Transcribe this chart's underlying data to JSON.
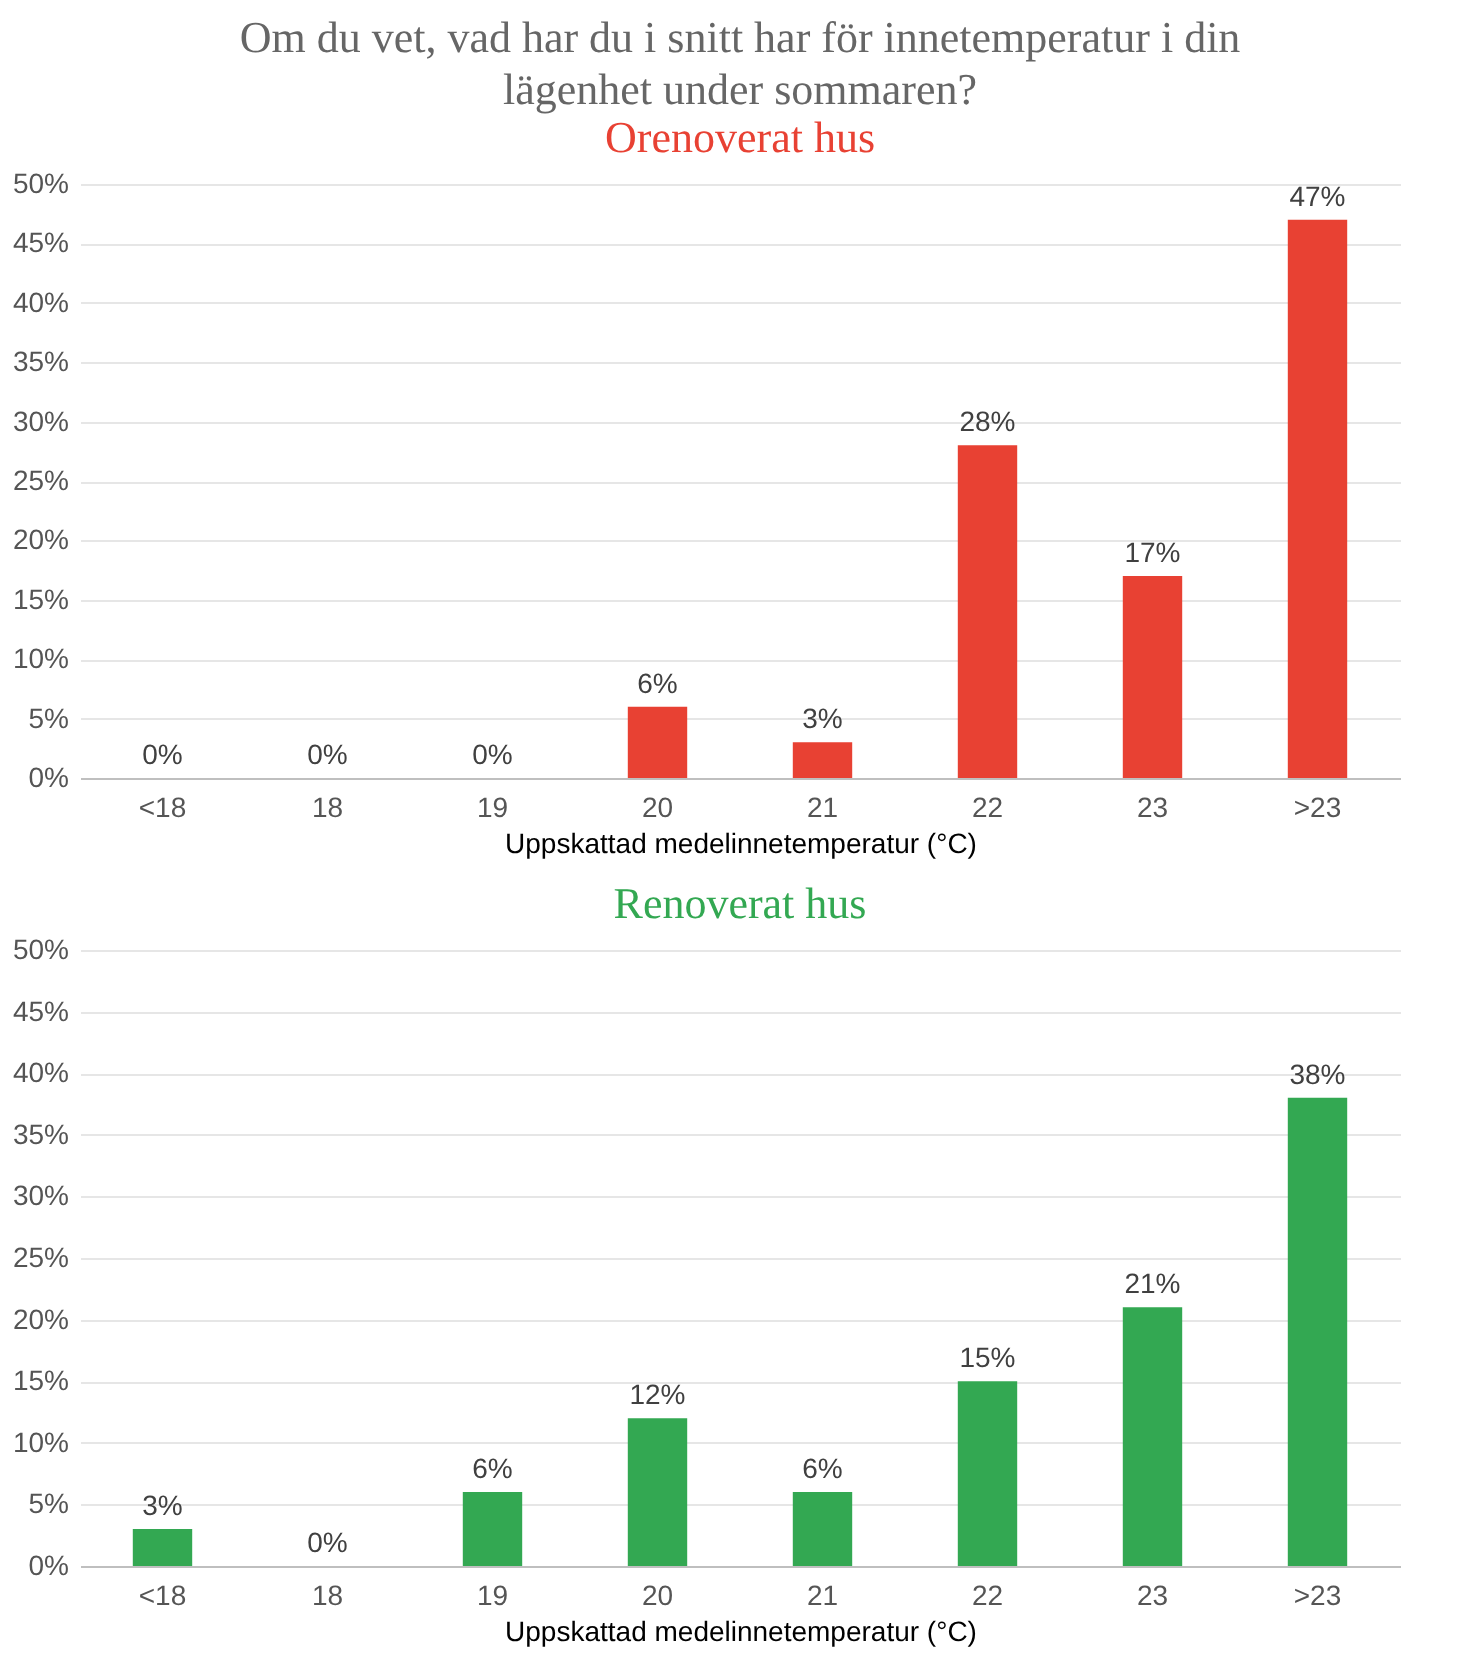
{
  "chart_data": [
    {
      "type": "bar",
      "title": "Om du vet, vad har du i snitt har för innetemperatur i din lägenhet under sommaren?",
      "subtitle": "Orenoverat hus",
      "xlabel": "Uppskattad medelinnetemperatur (°C)",
      "categories": [
        "<18",
        "18",
        "19",
        "20",
        "21",
        "22",
        "23",
        ">23"
      ],
      "series": [
        {
          "color": "#e84133",
          "values": [
            0,
            0,
            0,
            6,
            3,
            28,
            17,
            47
          ],
          "value_labels": [
            "0%",
            "0%",
            "0%",
            "6%",
            "3%",
            "28%",
            "17%",
            "47%"
          ]
        }
      ],
      "ylim": [
        0,
        50
      ],
      "yticks": [
        {
          "value": 0,
          "label": "0%"
        },
        {
          "value": 5,
          "label": "5%"
        },
        {
          "value": 10,
          "label": "10%"
        },
        {
          "value": 15,
          "label": "15%"
        },
        {
          "value": 20,
          "label": "20%"
        },
        {
          "value": 25,
          "label": "25%"
        },
        {
          "value": 30,
          "label": "30%"
        },
        {
          "value": 35,
          "label": "35%"
        },
        {
          "value": 40,
          "label": "40%"
        },
        {
          "value": 45,
          "label": "45%"
        },
        {
          "value": 50,
          "label": "50%"
        }
      ],
      "grid": "y"
    },
    {
      "type": "bar",
      "title": "Renoverat hus",
      "xlabel": "Uppskattad medelinnetemperatur (°C)",
      "categories": [
        "<18",
        "18",
        "19",
        "20",
        "21",
        "22",
        "23",
        ">23"
      ],
      "series": [
        {
          "color": "#33a852",
          "values": [
            3,
            0,
            6,
            12,
            6,
            15,
            21,
            38
          ],
          "value_labels": [
            "3%",
            "0%",
            "6%",
            "12%",
            "6%",
            "15%",
            "21%",
            "38%"
          ]
        }
      ],
      "ylim": [
        0,
        50
      ],
      "yticks": [
        {
          "value": 0,
          "label": "0%"
        },
        {
          "value": 5,
          "label": "5%"
        },
        {
          "value": 10,
          "label": "10%"
        },
        {
          "value": 15,
          "label": "15%"
        },
        {
          "value": 20,
          "label": "20%"
        },
        {
          "value": 25,
          "label": "25%"
        },
        {
          "value": 30,
          "label": "30%"
        },
        {
          "value": 35,
          "label": "35%"
        },
        {
          "value": 40,
          "label": "40%"
        },
        {
          "value": 45,
          "label": "45%"
        },
        {
          "value": 50,
          "label": "50%"
        }
      ],
      "grid": "y"
    }
  ]
}
